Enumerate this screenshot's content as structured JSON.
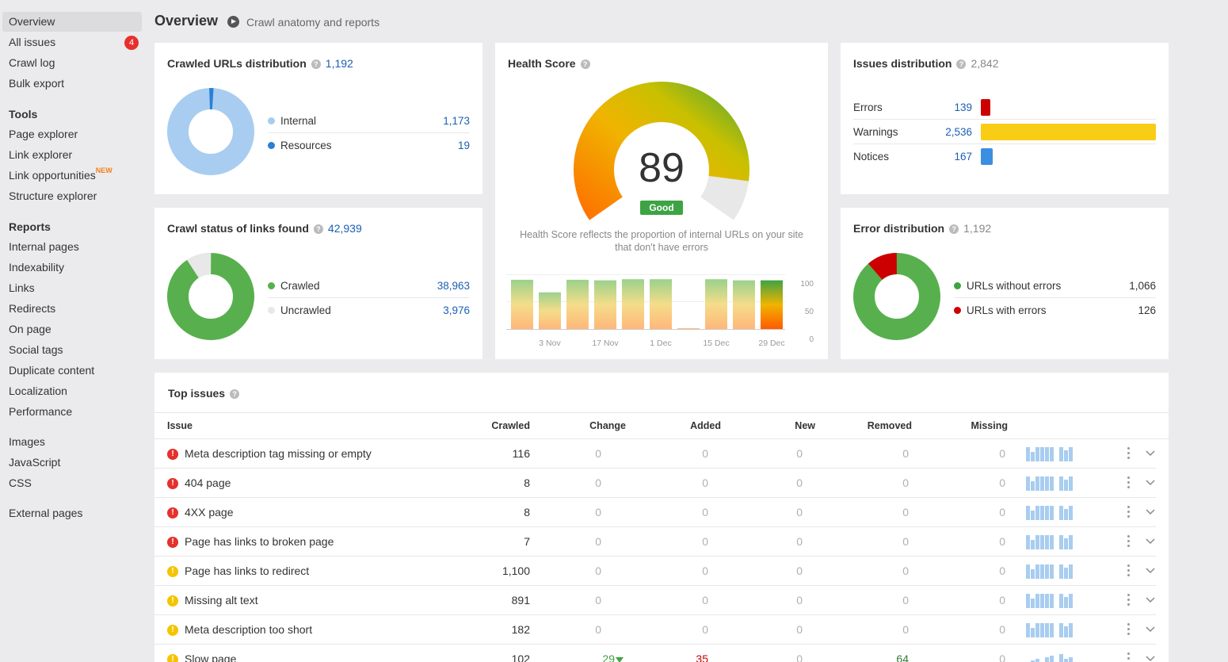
{
  "sidebar": {
    "items": [
      {
        "label": "Overview",
        "active": true
      },
      {
        "label": "All issues",
        "badge": "4"
      },
      {
        "label": "Crawl log"
      },
      {
        "label": "Bulk export"
      }
    ],
    "tools_heading": "Tools",
    "tools": [
      {
        "label": "Page explorer"
      },
      {
        "label": "Link explorer"
      },
      {
        "label": "Link opportunities",
        "tag": "NEW"
      },
      {
        "label": "Structure explorer"
      }
    ],
    "reports_heading": "Reports",
    "reports": [
      {
        "label": "Internal pages"
      },
      {
        "label": "Indexability"
      },
      {
        "label": "Links"
      },
      {
        "label": "Redirects"
      },
      {
        "label": "On page"
      },
      {
        "label": "Social tags"
      },
      {
        "label": "Duplicate content"
      },
      {
        "label": "Localization"
      },
      {
        "label": "Performance"
      }
    ],
    "resources": [
      {
        "label": "Images"
      },
      {
        "label": "JavaScript"
      },
      {
        "label": "CSS"
      }
    ],
    "external": {
      "label": "External pages"
    }
  },
  "header": {
    "title": "Overview",
    "subtitle": "Crawl anatomy and reports"
  },
  "crawled_urls": {
    "title": "Crawled URLs distribution",
    "total": "1,192",
    "legend": [
      {
        "label": "Internal",
        "value": "1,173",
        "color": "#a8cdf0"
      },
      {
        "label": "Resources",
        "value": "19",
        "color": "#2b7fd4"
      }
    ]
  },
  "crawl_status": {
    "title": "Crawl status of links found",
    "total": "42,939",
    "legend": [
      {
        "label": "Crawled",
        "value": "38,963",
        "color": "#57b04d"
      },
      {
        "label": "Uncrawled",
        "value": "3,976",
        "color": "#e8e8e8"
      }
    ]
  },
  "health": {
    "title": "Health Score",
    "score": "89",
    "rating": "Good",
    "description": "Health Score reflects the proportion of internal URLs on your site that don't have errors",
    "history": [
      90,
      67,
      90,
      89,
      91,
      91,
      0,
      91,
      89,
      89
    ],
    "x_ticks": [
      "3 Nov",
      "17 Nov",
      "1 Dec",
      "15 Dec",
      "29 Dec"
    ],
    "y_ticks": [
      "100",
      "50",
      "0"
    ]
  },
  "issues_distribution": {
    "title": "Issues distribution",
    "total": "2,842",
    "rows": [
      {
        "label": "Errors",
        "value": "139",
        "count": 139,
        "color": "#cc0000"
      },
      {
        "label": "Warnings",
        "value": "2,536",
        "count": 2536,
        "color": "#f9cc16"
      },
      {
        "label": "Notices",
        "value": "167",
        "count": 167,
        "color": "#3b8ee0"
      }
    ]
  },
  "error_distribution": {
    "title": "Error distribution",
    "total": "1,192",
    "legend": [
      {
        "label": "URLs without errors",
        "value": "1,066",
        "color": "#57b04d"
      },
      {
        "label": "URLs with errors",
        "value": "126",
        "color": "#cc0000"
      }
    ]
  },
  "top_issues": {
    "title": "Top issues",
    "columns": [
      "Issue",
      "Crawled",
      "Change",
      "Added",
      "New",
      "Removed",
      "Missing"
    ],
    "rows": [
      {
        "severity": "error",
        "issue": "Meta description tag missing or empty",
        "crawled": "116",
        "change": "0",
        "added": "0",
        "new": "0",
        "removed": "0",
        "missing": "0"
      },
      {
        "severity": "error",
        "issue": "404 page",
        "crawled": "8",
        "change": "0",
        "added": "0",
        "new": "0",
        "removed": "0",
        "missing": "0"
      },
      {
        "severity": "error",
        "issue": "4XX page",
        "crawled": "8",
        "change": "0",
        "added": "0",
        "new": "0",
        "removed": "0",
        "missing": "0"
      },
      {
        "severity": "error",
        "issue": "Page has links to broken page",
        "crawled": "7",
        "change": "0",
        "added": "0",
        "new": "0",
        "removed": "0",
        "missing": "0"
      },
      {
        "severity": "warning",
        "issue": "Page has links to redirect",
        "crawled": "1,100",
        "change": "0",
        "added": "0",
        "new": "0",
        "removed": "0",
        "missing": "0"
      },
      {
        "severity": "warning",
        "issue": "Missing alt text",
        "crawled": "891",
        "change": "0",
        "added": "0",
        "new": "0",
        "removed": "0",
        "missing": "0"
      },
      {
        "severity": "warning",
        "issue": "Meta description too short",
        "crawled": "182",
        "change": "0",
        "added": "0",
        "new": "0",
        "removed": "0",
        "missing": "0"
      },
      {
        "severity": "warning",
        "issue": "Slow page",
        "crawled": "102",
        "change": "29",
        "added": "35",
        "new": "0",
        "removed": "64",
        "missing": "0"
      }
    ]
  }
}
